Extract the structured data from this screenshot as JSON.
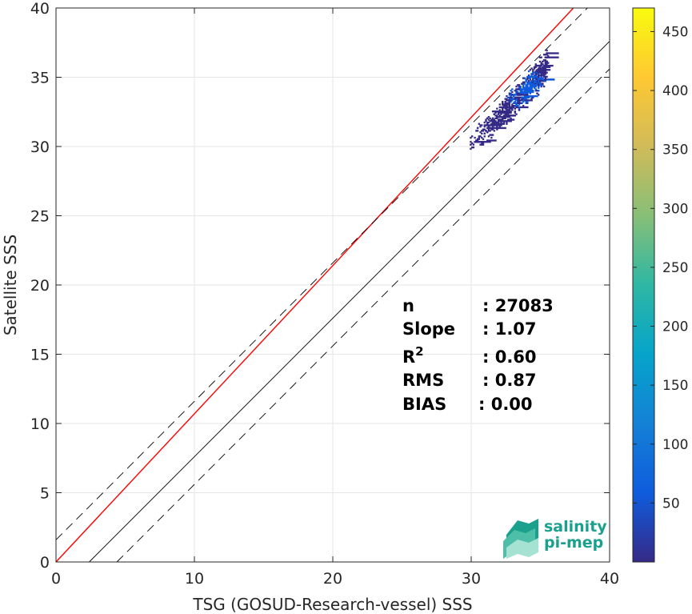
{
  "chart_data": {
    "type": "heatmap",
    "xlabel": "TSG (GOSUD-Research-vessel) SSS",
    "ylabel": "Satellite SSS",
    "xlim": [
      0,
      40
    ],
    "ylim": [
      0,
      40
    ],
    "xticks": [
      0,
      10,
      20,
      30,
      40
    ],
    "yticks": [
      0,
      5,
      10,
      15,
      20,
      25,
      30,
      35,
      40
    ],
    "grid": true,
    "colorbar": {
      "range": [
        0,
        470
      ],
      "ticks": [
        50,
        100,
        150,
        200,
        250,
        300,
        350,
        400,
        450
      ],
      "colormap": "parula",
      "colors": [
        "#352a87",
        "#0f5cdd",
        "#1481d6",
        "#06a4ca",
        "#2eb7a4",
        "#87bf77",
        "#d1bb59",
        "#fec832",
        "#f9fb0e"
      ]
    },
    "lines": [
      {
        "name": "identity",
        "slope": 1.0,
        "intercept": -2.4,
        "style": "solid",
        "color": "#000000"
      },
      {
        "name": "regression",
        "slope": 1.07,
        "intercept": 0.0,
        "color": "#ff0000",
        "style": "solid"
      },
      {
        "name": "upper-bound",
        "slope": 1.0,
        "intercept": 1.6,
        "style": "dashed",
        "color": "#000000"
      },
      {
        "name": "lower-bound",
        "slope": 1.0,
        "intercept": -4.4,
        "style": "dashed",
        "color": "#000000"
      }
    ],
    "density_cluster": {
      "x_range": [
        29.8,
        35.5
      ],
      "y_range": [
        29.5,
        38.0
      ],
      "center": [
        34.0,
        34.0
      ]
    },
    "stats": [
      {
        "label": "n",
        "value": ": 27083"
      },
      {
        "label": "Slope",
        "value": ": 1.07"
      },
      {
        "label": "R",
        "sup": "2",
        "value": ": 0.60"
      },
      {
        "label": "RMS",
        "value": ": 0.87"
      },
      {
        "label": "BIAS",
        "value": ": 0.00"
      }
    ]
  },
  "logo": {
    "line1": "salinity",
    "line2": "pi-mep"
  }
}
